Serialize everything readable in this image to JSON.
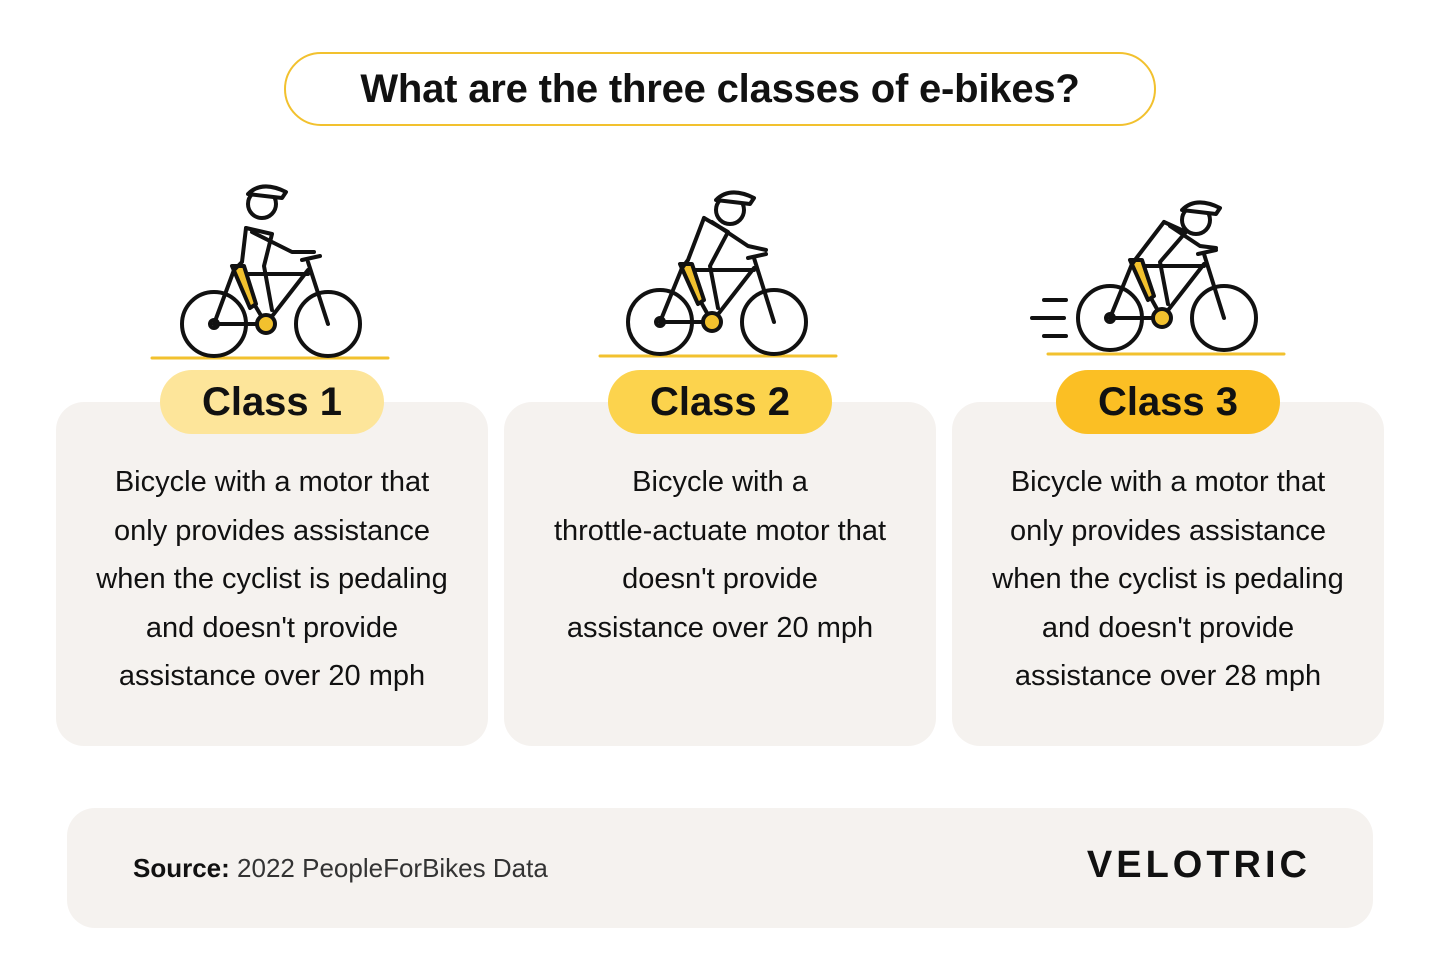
{
  "title": "What are the three classes of e-bikes?",
  "colors": {
    "accent_outline": "#f2c12e",
    "class1_badge": "#fde59a",
    "class2_badge": "#fcd34d",
    "class3_badge": "#fbbf24",
    "card_bg": "#f5f2ef",
    "footer_bg": "#f5f2ef"
  },
  "classes": [
    {
      "label": "Class 1",
      "icon": "cyclist-upright-icon",
      "description_lines": [
        "Bicycle with a motor that",
        "only provides assistance",
        "when the cyclist is pedaling",
        "and doesn't provide",
        "assistance over 20 mph"
      ]
    },
    {
      "label": "Class 2",
      "icon": "cyclist-leaning-icon",
      "description_lines": [
        "Bicycle with a",
        "throttle-actuate motor that",
        "doesn't provide",
        "assistance over 20 mph"
      ]
    },
    {
      "label": "Class 3",
      "icon": "cyclist-speed-icon",
      "description_lines": [
        "Bicycle with a motor that",
        "only provides assistance",
        "when the cyclist is pedaling",
        "and doesn't provide",
        "assistance over 28 mph"
      ]
    }
  ],
  "footer": {
    "source_label": "Source:",
    "source_value": "2022 PeopleForBikes Data",
    "logo": "VELOTRIC"
  }
}
